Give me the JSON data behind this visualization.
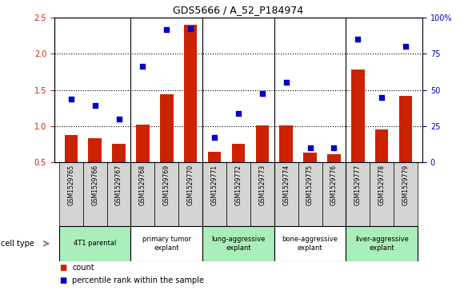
{
  "title": "GDS5666 / A_52_P184974",
  "samples": [
    "GSM1529765",
    "GSM1529766",
    "GSM1529767",
    "GSM1529768",
    "GSM1529769",
    "GSM1529770",
    "GSM1529771",
    "GSM1529772",
    "GSM1529773",
    "GSM1529774",
    "GSM1529775",
    "GSM1529776",
    "GSM1529777",
    "GSM1529778",
    "GSM1529779"
  ],
  "bar_values": [
    0.88,
    0.83,
    0.76,
    1.02,
    1.44,
    2.4,
    0.65,
    0.76,
    1.01,
    1.01,
    0.64,
    0.61,
    1.78,
    0.96,
    1.42
  ],
  "scatter_values": [
    1.37,
    1.28,
    1.1,
    1.82,
    2.33,
    2.34,
    0.85,
    1.17,
    1.45,
    1.61,
    0.7,
    0.7,
    2.2,
    1.4,
    2.1
  ],
  "bar_color": "#cc2200",
  "scatter_color": "#0000cc",
  "ylim_left": [
    0.5,
    2.5
  ],
  "ylim_right": [
    0,
    100
  ],
  "yticks_left": [
    0.5,
    1.0,
    1.5,
    2.0,
    2.5
  ],
  "yticks_right": [
    0,
    25,
    50,
    75,
    100
  ],
  "ytick_labels_right": [
    "0",
    "25",
    "50",
    "75",
    "100%"
  ],
  "cell_type_label": "cell type",
  "legend_bar_label": "count",
  "legend_scatter_label": "percentile rank within the sample",
  "bar_bottom": 0.5,
  "group_boundaries": [
    2.5,
    5.5,
    8.5,
    11.5
  ],
  "cell_type_groups": [
    {
      "label": "4T1 parental",
      "indices": [
        0,
        1,
        2
      ],
      "color": "#aaeebb"
    },
    {
      "label": "primary tumor\nexplant",
      "indices": [
        3,
        4,
        5
      ],
      "color": "#ffffff"
    },
    {
      "label": "lung-aggressive\nexplant",
      "indices": [
        6,
        7,
        8
      ],
      "color": "#aaeebb"
    },
    {
      "label": "bone-aggressive\nexplant",
      "indices": [
        9,
        10,
        11
      ],
      "color": "#ffffff"
    },
    {
      "label": "liver-aggressive\nexplant",
      "indices": [
        12,
        13,
        14
      ],
      "color": "#aaeebb"
    }
  ]
}
